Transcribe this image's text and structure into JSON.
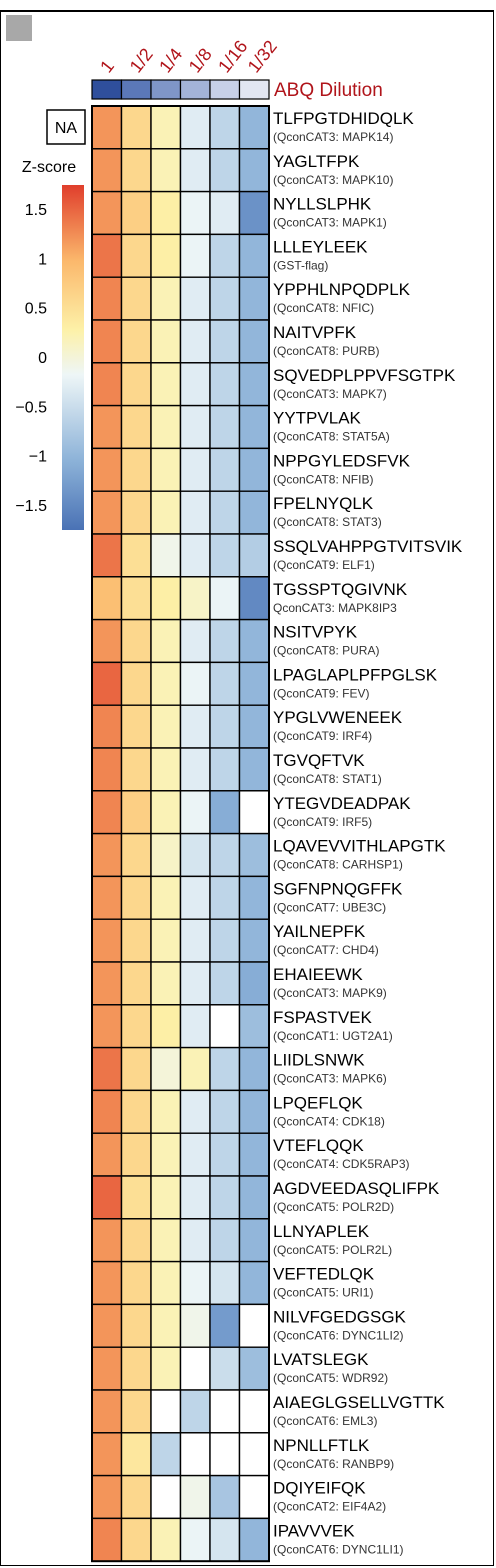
{
  "chart_data": {
    "type": "heatmap",
    "column_group_label": "ABQ Dilution",
    "columns": [
      "1",
      "1/2",
      "1/4",
      "1/8",
      "1/16",
      "1/32"
    ],
    "column_bar_colors": [
      "#2f4f9c",
      "#5b78b8",
      "#7f96c8",
      "#a3b3d8",
      "#c7d0e8",
      "#e2e6f2"
    ],
    "legend": {
      "title": "Z-score",
      "ticks": [
        "1.5",
        "1",
        "0.5",
        "0",
        "−0.5",
        "−1",
        "−1.5"
      ],
      "range": [
        -1.75,
        1.75
      ],
      "na_label": "NA",
      "colors": [
        "#4a72b5",
        "#8cb2d8",
        "#eef6f7",
        "#fdf1a8",
        "#fbb86c",
        "#e03e2c"
      ]
    },
    "rows": [
      {
        "peptide": "TLFPGTDHIDQLK",
        "protein": "(QconCAT3: MAPK14)",
        "z": [
          1.2,
          0.6,
          0.2,
          -0.3,
          -0.6,
          -1.0
        ]
      },
      {
        "peptide": "YAGLTFPK",
        "protein": "(QconCAT3: MAPK10)",
        "z": [
          1.2,
          0.6,
          0.2,
          -0.3,
          -0.6,
          -1.0
        ]
      },
      {
        "peptide": "NYLLSLPHK",
        "protein": "(QconCAT3: MAPK1)",
        "z": [
          1.2,
          0.7,
          0.3,
          -0.2,
          -0.3,
          -1.4
        ]
      },
      {
        "peptide": "LLLEYLEEK",
        "protein": "(GST-flag)",
        "z": [
          1.4,
          0.6,
          0.3,
          -0.2,
          -0.6,
          -1.0
        ]
      },
      {
        "peptide": "YPPHLNPQDPLK",
        "protein": "(QconCAT8: NFIC)",
        "z": [
          1.3,
          0.6,
          0.2,
          -0.3,
          -0.6,
          -1.0
        ]
      },
      {
        "peptide": "NAITVPFK",
        "protein": "(QconCAT8: PURB)",
        "z": [
          1.3,
          0.6,
          0.2,
          -0.3,
          -0.6,
          -1.0
        ]
      },
      {
        "peptide": "SQVEDPLPPVFSGTPK",
        "protein": "(QconCAT3: MAPK7)",
        "z": [
          1.3,
          0.6,
          0.2,
          -0.3,
          -0.6,
          -1.0
        ]
      },
      {
        "peptide": "YYTPVLAK",
        "protein": "(QconCAT8: STAT5A)",
        "z": [
          1.2,
          0.6,
          0.2,
          -0.3,
          -0.6,
          -1.0
        ]
      },
      {
        "peptide": "NPPGYLEDSFVK",
        "protein": "(QconCAT8: NFIB)",
        "z": [
          1.2,
          0.6,
          0.2,
          -0.3,
          -0.6,
          -1.0
        ]
      },
      {
        "peptide": "FPELNYQLK",
        "protein": "(QconCAT8: STAT3)",
        "z": [
          1.2,
          0.6,
          0.2,
          -0.3,
          -0.6,
          -1.0
        ]
      },
      {
        "peptide": "SSQLVAHPPGTVITSVIK",
        "protein": "(QconCAT9: ELF1)",
        "z": [
          1.4,
          0.5,
          -0.1,
          -0.3,
          -0.6,
          -0.7
        ]
      },
      {
        "peptide": "TGSSPTQGIVNK",
        "protein": "QconCAT3: MAPK8IP3",
        "z": [
          0.9,
          0.5,
          0.3,
          0.1,
          -0.2,
          -1.5
        ]
      },
      {
        "peptide": "NSITVPYK",
        "protein": "(QconCAT8: PURA)",
        "z": [
          1.2,
          0.6,
          0.2,
          -0.3,
          -0.6,
          -1.0
        ]
      },
      {
        "peptide": "LPAGLAPLPFPGLSK",
        "protein": "(QconCAT9: FEV)",
        "z": [
          1.5,
          0.6,
          0.2,
          -0.2,
          -0.6,
          -1.0
        ]
      },
      {
        "peptide": "YPGLVWENEEK",
        "protein": "(QconCAT9: IRF4)",
        "z": [
          1.3,
          0.6,
          0.2,
          -0.3,
          -0.6,
          -1.0
        ]
      },
      {
        "peptide": "TGVQFTVK",
        "protein": "(QconCAT8: STAT1)",
        "z": [
          1.3,
          0.6,
          0.2,
          -0.3,
          -0.6,
          -1.0
        ]
      },
      {
        "peptide": "YTEGVDEADPAK",
        "protein": "(QconCAT9: IRF5)",
        "z": [
          1.3,
          0.7,
          0.2,
          -0.2,
          -1.1,
          null
        ]
      },
      {
        "peptide": "LQAVEVVITHLAPGTK",
        "protein": "(QconCAT8: CARHSP1)",
        "z": [
          1.2,
          0.6,
          0.1,
          -0.4,
          -0.6,
          -0.9
        ]
      },
      {
        "peptide": "SGFNPNQGFFK",
        "protein": "(QconCAT7: UBE3C)",
        "z": [
          1.2,
          0.6,
          0.2,
          -0.3,
          -0.6,
          -1.0
        ]
      },
      {
        "peptide": "YAILNEPFK",
        "protein": "(QconCAT7: CHD4)",
        "z": [
          1.2,
          0.6,
          0.2,
          -0.3,
          -0.6,
          -1.0
        ]
      },
      {
        "peptide": "EHAIEEWK",
        "protein": "(QconCAT3: MAPK9)",
        "z": [
          1.2,
          0.6,
          0.2,
          -0.3,
          -0.6,
          -1.1
        ]
      },
      {
        "peptide": "FSPASTVEK",
        "protein": "(QconCAT1: UGT2A1)",
        "z": [
          1.2,
          0.6,
          0.3,
          -0.3,
          null,
          -0.9
        ]
      },
      {
        "peptide": "LIIDLSNWK",
        "protein": "(QconCAT3: MAPK6)",
        "z": [
          1.4,
          0.6,
          0.0,
          0.2,
          -0.6,
          -1.0
        ]
      },
      {
        "peptide": "LPQEFLQK",
        "protein": "(QconCAT4: CDK18)",
        "z": [
          1.3,
          0.6,
          0.2,
          -0.3,
          -0.6,
          -1.0
        ]
      },
      {
        "peptide": "VTEFLQQK",
        "protein": "(QconCAT4: CDK5RAP3)",
        "z": [
          1.2,
          0.6,
          0.2,
          -0.3,
          -0.6,
          -1.0
        ]
      },
      {
        "peptide": "AGDVEEDASQLIFPK",
        "protein": "(QconCAT5: POLR2D)",
        "z": [
          1.5,
          0.5,
          0.2,
          -0.3,
          -0.6,
          -1.0
        ]
      },
      {
        "peptide": "LLNYAPLEK",
        "protein": "(QconCAT5: POLR2L)",
        "z": [
          1.2,
          0.6,
          0.2,
          -0.3,
          -0.6,
          -1.0
        ]
      },
      {
        "peptide": "VEFTEDLQK",
        "protein": "(QconCAT5: URI1)",
        "z": [
          1.2,
          0.6,
          0.2,
          -0.2,
          -0.4,
          -1.0
        ]
      },
      {
        "peptide": "NILVFGEDGSGK",
        "protein": "(QconCAT6: DYNC1LI2)",
        "z": [
          1.2,
          0.6,
          0.2,
          -0.1,
          -1.3,
          null
        ]
      },
      {
        "peptide": "LVATSLEGK",
        "protein": "(QconCAT5: WDR92)",
        "z": [
          1.2,
          0.6,
          0.2,
          null,
          -0.5,
          -0.9
        ]
      },
      {
        "peptide": "AIAEGLGSELLVGTTK",
        "protein": "(QconCAT6: EML3)",
        "z": [
          1.2,
          0.6,
          null,
          -0.6,
          null,
          null
        ]
      },
      {
        "peptide": "NPNLLFTLK",
        "protein": "(QconCAT6: RANBP9)",
        "z": [
          1.2,
          0.4,
          -0.6,
          null,
          null,
          null
        ]
      },
      {
        "peptide": "DQIYEIFQK",
        "protein": "(QconCAT2: EIF4A2)",
        "z": [
          1.2,
          0.6,
          null,
          -0.1,
          -0.8,
          null
        ]
      },
      {
        "peptide": "IPAVVVEK",
        "protein": "(QconCAT6: DYNC1LI1)",
        "z": [
          1.3,
          0.6,
          0.2,
          -0.2,
          -0.4,
          -1.0
        ]
      }
    ]
  }
}
